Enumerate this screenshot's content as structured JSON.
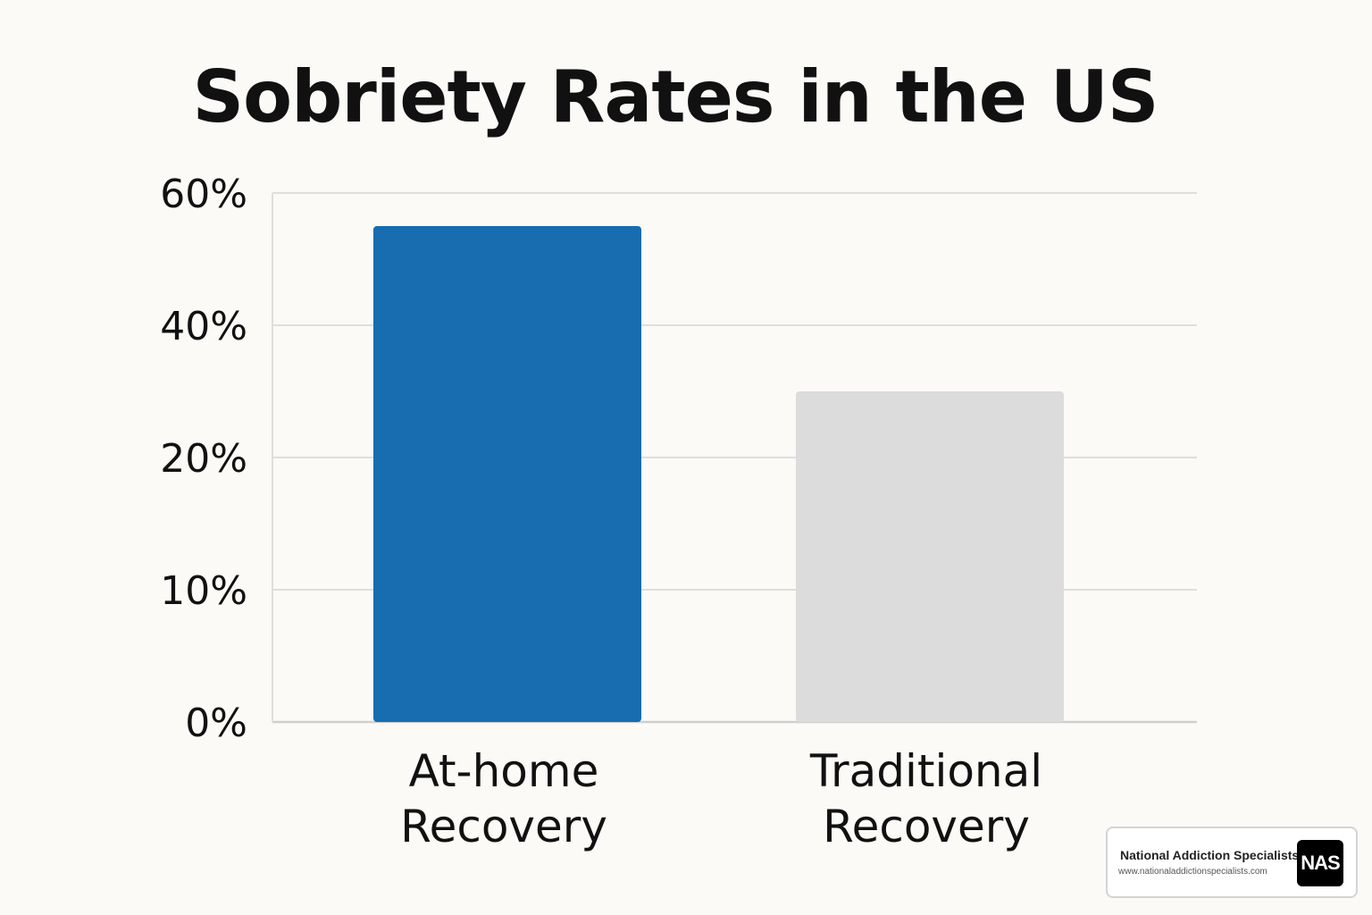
{
  "chart_data": {
    "type": "bar",
    "title": "Sobriety Rates in the US",
    "categories": [
      [
        "At-home",
        "Recovery"
      ],
      [
        "Traditional",
        "Recovery"
      ]
    ],
    "values": [
      55,
      30
    ],
    "y_ticks": [
      0,
      10,
      20,
      40,
      60
    ],
    "y_tick_labels": [
      "0%",
      "10%",
      "20%",
      "40%",
      "60%"
    ],
    "xlabel": "",
    "ylabel": "",
    "grid": true,
    "colors": [
      "#176db0",
      "#dcdcdc"
    ]
  },
  "brand": {
    "name": "National Addiction Specialists",
    "url": "www.nationaladdictionspecialists.com",
    "logo_text": "NAS"
  }
}
